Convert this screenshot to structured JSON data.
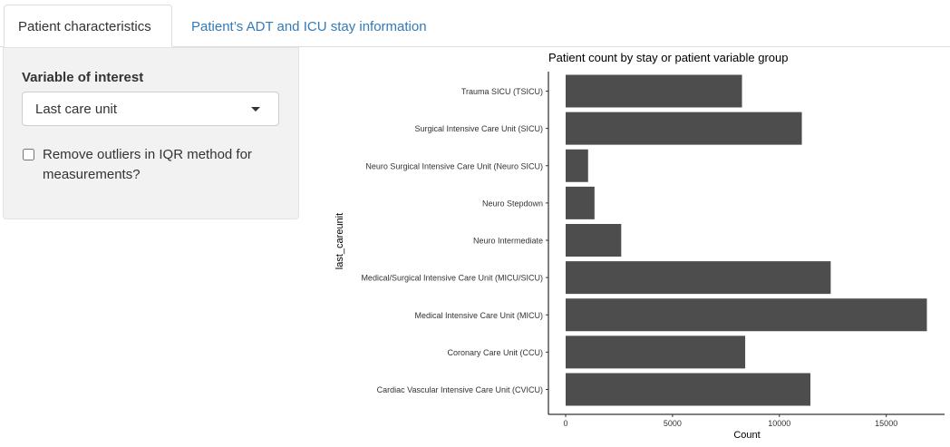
{
  "tabs": [
    {
      "label": "Patient characteristics",
      "active": true
    },
    {
      "label": "Patient’s ADT and ICU stay information",
      "active": false
    }
  ],
  "sidebar": {
    "variable_label": "Variable of interest",
    "variable_value": "Last care unit",
    "outlier_label": "Remove outliers in IQR method for measurements?",
    "outlier_checked": false
  },
  "colors": {
    "bar": "#4d4d4d",
    "tab_link": "#337ab7",
    "panel_bg": "#f2f2f2"
  },
  "chart_data": {
    "type": "bar",
    "orientation": "horizontal",
    "title": "Patient count by stay or patient variable group",
    "xlabel": "Count",
    "ylabel": "last_careunit",
    "xlim": [
      0,
      17200
    ],
    "xticks": [
      0,
      5000,
      10000,
      15000
    ],
    "xtick_labels": [
      "0",
      "5000",
      "10000",
      "15000"
    ],
    "grid": false,
    "categories": [
      "Trauma SICU (TSICU)",
      "Surgical Intensive Care Unit (SICU)",
      "Neuro Surgical Intensive Care Unit (Neuro SICU)",
      "Neuro Stepdown",
      "Neuro Intermediate",
      "Medical/Surgical Intensive Care Unit (MICU/SICU)",
      "Medical Intensive Care Unit (MICU)",
      "Coronary Care Unit (CCU)",
      "Cardiac Vascular Intensive Care Unit (CVICU)"
    ],
    "values": [
      8250,
      11050,
      1050,
      1350,
      2600,
      12400,
      16900,
      8400,
      11450
    ]
  }
}
